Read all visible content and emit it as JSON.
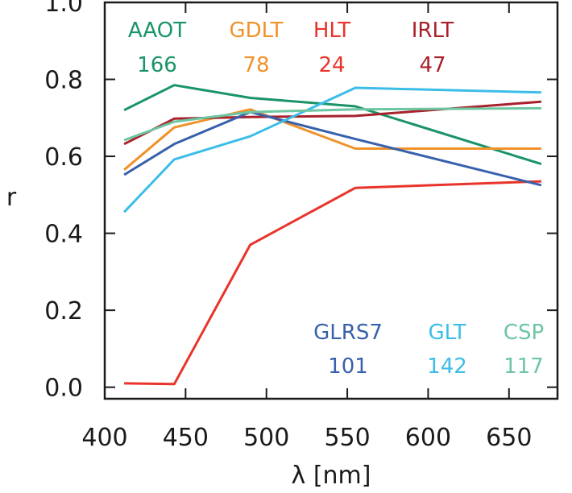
{
  "chart_data": {
    "type": "line",
    "title": "",
    "xlabel": "λ [nm]",
    "ylabel": "r",
    "xlim": [
      400,
      680
    ],
    "ylim": [
      -0.03,
      1.0
    ],
    "xticks": [
      400,
      450,
      500,
      550,
      600,
      650
    ],
    "xtick_labels": [
      "400",
      "450",
      "500",
      "550",
      "600",
      "650"
    ],
    "yticks": [
      0.0,
      0.2,
      0.4,
      0.6,
      0.8,
      1.0
    ],
    "ytick_labels": [
      "0.0",
      "0.2",
      "0.4",
      "0.6",
      "0.8",
      "1.0"
    ],
    "grid": false,
    "x": [
      412,
      443,
      490,
      555,
      670
    ],
    "series": [
      {
        "name": "AAOT",
        "count": "166",
        "color": "#1a9467",
        "values": [
          0.72,
          0.785,
          0.752,
          0.73,
          0.58
        ]
      },
      {
        "name": "GDLT",
        "count": "78",
        "color": "#f0922a",
        "values": [
          0.565,
          0.675,
          0.722,
          0.62,
          0.62
        ]
      },
      {
        "name": "HLT",
        "count": "24",
        "color": "#e8342a",
        "values": [
          0.01,
          0.008,
          0.37,
          0.518,
          0.535
        ]
      },
      {
        "name": "IRLT",
        "count": "47",
        "color": "#a8222c",
        "values": [
          0.632,
          0.698,
          0.702,
          0.705,
          0.742
        ]
      },
      {
        "name": "GLRS7",
        "count": "101",
        "color": "#3761ac",
        "values": [
          0.552,
          0.632,
          0.715,
          0.645,
          0.525
        ]
      },
      {
        "name": "GLT",
        "count": "142",
        "color": "#3cbde8",
        "values": [
          0.455,
          0.592,
          0.652,
          0.778,
          0.766
        ]
      },
      {
        "name": "CSP",
        "count": "117",
        "color": "#6dc6a2",
        "values": [
          0.642,
          0.69,
          0.715,
          0.722,
          0.725
        ]
      }
    ],
    "legend_top": [
      "AAOT",
      "GDLT",
      "HLT",
      "IRLT"
    ],
    "legend_bottom": [
      "GLRS7",
      "GLT",
      "CSP"
    ]
  }
}
